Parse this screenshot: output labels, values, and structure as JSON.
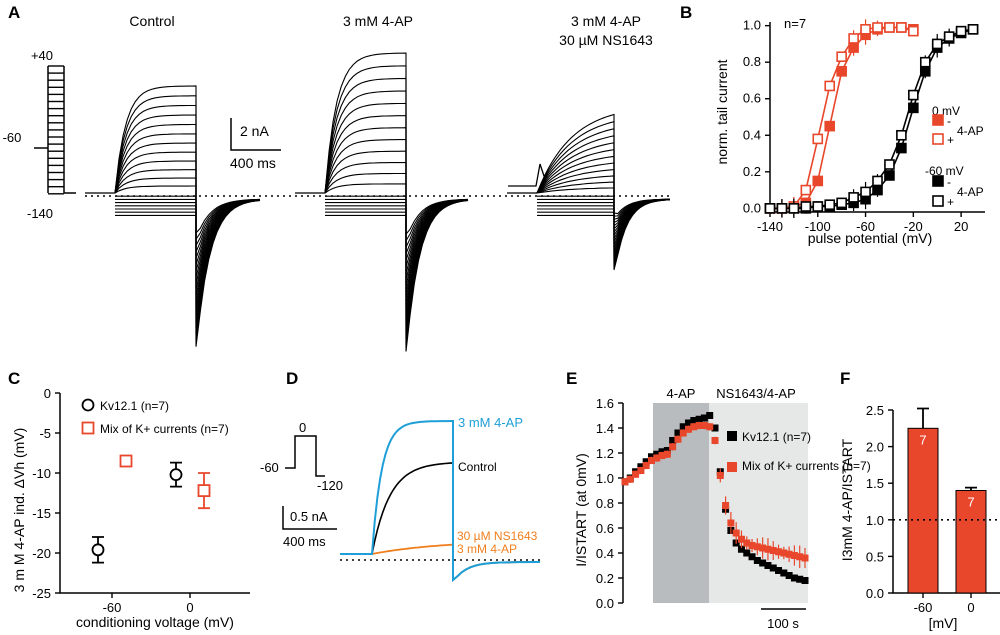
{
  "colors": {
    "red": "#e8472b",
    "black": "#000000",
    "blue": "#1e9fd8",
    "orange": "#f07f1e",
    "gray_dark": "#b8bcbe",
    "gray_light": "#e6e8e8"
  },
  "panel_A": {
    "label": "A",
    "titles": [
      "Control",
      "3 mM 4-AP",
      "3 mM 4-AP",
      "30 µM NS1643"
    ],
    "protocol_labels": [
      "+40",
      "-60",
      "-140"
    ],
    "scalebar_current": "2 nA",
    "scalebar_time": "400 ms"
  },
  "panel_D": {
    "label": "D",
    "protocol_labels": [
      "0",
      "-60",
      "-120"
    ],
    "scalebar_current": "0.5 nA",
    "scalebar_time": "400 ms",
    "trace_labels": [
      "3 mM 4-AP",
      "Control",
      "30 µM NS1643",
      "3 mM 4-AP"
    ]
  },
  "chart_data": [
    {
      "panel": "B",
      "type": "scatter",
      "xlabel": "pulse potential (mV)",
      "ylabel": "norm. tail current",
      "annotation": "n=7",
      "xlim": [
        -140,
        40
      ],
      "ylim": [
        -0.02,
        1.02
      ],
      "xticks": [
        -140,
        -100,
        -60,
        -20,
        20
      ],
      "yticks": [
        0.0,
        0.2,
        0.4,
        0.6,
        0.8,
        1.0
      ],
      "legend_groups": [
        {
          "title": "0 mV",
          "side": "4-AP"
        },
        {
          "title": "-60 mV",
          "side": "4-AP"
        }
      ],
      "series": [
        {
          "name": "0 mV -",
          "color": "#e8472b",
          "filled": true,
          "legend": "-",
          "x": [
            -140,
            -130,
            -120,
            -110,
            -100,
            -90,
            -80,
            -70,
            -60,
            -50,
            -40,
            -30,
            -20
          ],
          "y": [
            0.0,
            0.0,
            0.01,
            0.03,
            0.15,
            0.45,
            0.75,
            0.88,
            0.95,
            0.98,
            0.99,
            0.99,
            0.98
          ]
        },
        {
          "name": "0 mV +",
          "color": "#e8472b",
          "filled": false,
          "legend": "+",
          "x": [
            -140,
            -130,
            -120,
            -110,
            -100,
            -90,
            -80,
            -70,
            -60,
            -50,
            -40,
            -30,
            -20
          ],
          "y": [
            0.0,
            0.0,
            0.01,
            0.1,
            0.38,
            0.67,
            0.83,
            0.93,
            0.98,
            0.99,
            0.99,
            0.99,
            0.97
          ]
        },
        {
          "name": "-60 mV -",
          "color": "#000000",
          "filled": true,
          "legend": "-",
          "x": [
            -140,
            -130,
            -120,
            -110,
            -100,
            -90,
            -80,
            -70,
            -60,
            -50,
            -40,
            -30,
            -20,
            -10,
            0,
            10,
            20,
            30
          ],
          "y": [
            0.0,
            0.0,
            0.0,
            0.0,
            0.01,
            0.01,
            0.02,
            0.03,
            0.05,
            0.1,
            0.18,
            0.33,
            0.55,
            0.75,
            0.88,
            0.93,
            0.96,
            0.98
          ]
        },
        {
          "name": "-60 mV +",
          "color": "#000000",
          "filled": false,
          "legend": "+",
          "x": [
            -140,
            -130,
            -120,
            -110,
            -100,
            -90,
            -80,
            -70,
            -60,
            -50,
            -40,
            -30,
            -20,
            -10,
            0,
            10,
            20,
            30
          ],
          "y": [
            0.0,
            0.0,
            0.0,
            0.01,
            0.01,
            0.02,
            0.03,
            0.06,
            0.09,
            0.15,
            0.24,
            0.4,
            0.62,
            0.8,
            0.9,
            0.94,
            0.97,
            0.98
          ]
        }
      ]
    },
    {
      "panel": "C",
      "type": "scatter",
      "ylabel": "3 m M 4-AP ind. ΔVh (mV)",
      "xlabel": "conditioning voltage (mV)",
      "categories": [
        "-60",
        "0"
      ],
      "ylim": [
        -25,
        0
      ],
      "yticks": [
        -25,
        -20,
        -15,
        -10,
        -5,
        0
      ],
      "legend_position": "top",
      "series": [
        {
          "name": "Kv12.1 (n=7)",
          "color": "#000000",
          "marker": "circle",
          "values": [
            -19.6,
            -10.2
          ],
          "errors": [
            1.6,
            1.5
          ]
        },
        {
          "name": "Mix of K+ currents (n=7)",
          "color": "#e8472b",
          "marker": "square",
          "values": [
            -8.5,
            -12.2
          ],
          "errors": [
            0.6,
            2.2
          ]
        }
      ]
    },
    {
      "panel": "E",
      "type": "line",
      "ylabel": "I/ISTART (at 0mV)",
      "ylim": [
        0,
        1.6
      ],
      "yticks": [
        0.0,
        0.2,
        0.4,
        0.6,
        0.8,
        1.0,
        1.2,
        1.4,
        1.6
      ],
      "regions": [
        "4-AP",
        "NS1643/4-AP"
      ],
      "scalebar_time": "100 s",
      "series": [
        {
          "name": "Kv12.1 (n=7)",
          "color": "#000000",
          "values": [
            0.97,
            1.0,
            1.05,
            1.09,
            1.13,
            1.17,
            1.19,
            1.21,
            1.22,
            1.3,
            1.36,
            1.41,
            1.44,
            1.46,
            1.47,
            1.48,
            1.5,
            1.4,
            1.05,
            0.75,
            0.58,
            0.48,
            0.43,
            0.4,
            0.37,
            0.34,
            0.32,
            0.3,
            0.28,
            0.26,
            0.24,
            0.22,
            0.2,
            0.19,
            0.18
          ]
        },
        {
          "name": "Mix of K+ currents (n=7)",
          "color": "#e8472b",
          "values": [
            0.97,
            0.99,
            1.03,
            1.06,
            1.1,
            1.14,
            1.16,
            1.18,
            1.19,
            1.25,
            1.31,
            1.36,
            1.39,
            1.41,
            1.42,
            1.42,
            1.41,
            1.3,
            1.02,
            0.78,
            0.64,
            0.56,
            0.51,
            0.48,
            0.46,
            0.45,
            0.44,
            0.43,
            0.42,
            0.41,
            0.4,
            0.39,
            0.38,
            0.37,
            0.36
          ]
        }
      ]
    },
    {
      "panel": "F",
      "type": "bar",
      "ylabel": "I3mM 4-AP/ISTART",
      "xlabel": "[mV]",
      "categories": [
        "-60",
        "0"
      ],
      "values": [
        2.25,
        1.4
      ],
      "errors": [
        0.27,
        0.04
      ],
      "bar_labels": [
        "7",
        "7"
      ],
      "ylim": [
        0,
        2.5
      ],
      "yticks": [
        0.0,
        0.5,
        1.0,
        1.5,
        2.0,
        2.5
      ],
      "reference_line": 1.0
    }
  ]
}
